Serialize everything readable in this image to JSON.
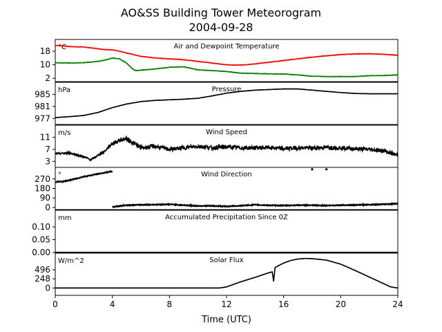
{
  "figure": {
    "title_line1": "AO&SS Building Tower Meteorogram",
    "title_line2": "2004-09-28",
    "xlabel": "Time (UTC)",
    "x_ticks": [
      "0",
      "4",
      "8",
      "12",
      "16",
      "20",
      "24"
    ]
  },
  "chart_data": [
    {
      "type": "line",
      "title": "Air and Dewpoint Temperature",
      "unit": "°C",
      "xlim": [
        0,
        24
      ],
      "ylim": [
        0,
        25
      ],
      "yticks": [
        2,
        10,
        18
      ],
      "series": [
        {
          "color": "#ff0000",
          "x": [
            0,
            0.5,
            1,
            1.5,
            2,
            2.5,
            3,
            3.5,
            4,
            4.5,
            5,
            5.5,
            6,
            6.5,
            7,
            8,
            9,
            10,
            11,
            12,
            12.5,
            13,
            14,
            15,
            16,
            17,
            18,
            19,
            20,
            21,
            22,
            23,
            24
          ],
          "y": [
            21.5,
            21.2,
            20.8,
            20.6,
            20.5,
            20,
            19.5,
            19,
            18.8,
            18,
            17,
            16,
            15,
            14.5,
            14,
            13.5,
            13,
            12,
            11,
            10,
            9.8,
            9.8,
            10.5,
            11.5,
            12.5,
            13.5,
            14.5,
            15.3,
            16,
            16.4,
            16.5,
            16.2,
            15.6
          ]
        },
        {
          "color": "#008000",
          "x": [
            0,
            1,
            2,
            3,
            3.5,
            4,
            4.5,
            5,
            5.3,
            5.6,
            6,
            7,
            8,
            9,
            10,
            11,
            12,
            13,
            14,
            15,
            16,
            17,
            18,
            19,
            20,
            21,
            22,
            23,
            24
          ],
          "y": [
            11.2,
            11,
            11.2,
            12,
            12.8,
            14,
            13.5,
            11,
            8.5,
            6.5,
            6.8,
            7.5,
            8.5,
            8.8,
            7,
            6.5,
            6,
            5,
            4.8,
            4.6,
            4.5,
            4,
            3.2,
            3,
            3,
            3,
            3.5,
            3.6,
            4
          ]
        }
      ]
    },
    {
      "type": "line",
      "title": "Pressure",
      "unit": "hPa",
      "xlim": [
        0,
        24
      ],
      "ylim": [
        975,
        989
      ],
      "yticks": [
        977,
        981,
        985
      ],
      "series": [
        {
          "color": "#000000",
          "x": [
            0,
            1,
            2,
            3,
            4,
            5,
            6,
            7,
            8,
            9,
            10,
            11,
            12,
            13,
            14,
            15,
            16,
            17,
            18,
            19,
            20,
            21,
            22,
            23,
            24
          ],
          "y": [
            977.3,
            977.6,
            978,
            979,
            980.6,
            981.8,
            982.6,
            983,
            983.2,
            983.4,
            983.7,
            984.5,
            985.4,
            986,
            986.4,
            986.6,
            986.8,
            986.8,
            986.4,
            986,
            985.6,
            985.3,
            985.2,
            985.2,
            985.2
          ]
        }
      ]
    },
    {
      "type": "line",
      "title": "Wind Speed",
      "unit": "m/s",
      "xlim": [
        0,
        24
      ],
      "ylim": [
        1,
        15
      ],
      "yticks": [
        3,
        7,
        11
      ],
      "series": [
        {
          "color": "#000000",
          "x": [
            0,
            1,
            2,
            2.5,
            3,
            3.5,
            4,
            4.5,
            5,
            5.5,
            6,
            7,
            8,
            9,
            10,
            11,
            12,
            13,
            14,
            15,
            16,
            17,
            18,
            19,
            20,
            21,
            22,
            23,
            24
          ],
          "y": [
            5.5,
            5.8,
            4.5,
            3.5,
            5,
            6.5,
            9,
            10,
            10.5,
            9,
            7.5,
            8,
            7,
            7.5,
            8,
            7.5,
            7.8,
            7.5,
            7.5,
            7.6,
            7.2,
            7.5,
            7.4,
            7.6,
            7.5,
            7.2,
            7,
            6.5,
            5
          ]
        }
      ]
    },
    {
      "type": "scatter",
      "title": "Wind Direction",
      "unit": "°",
      "xlim": [
        0,
        24
      ],
      "ylim": [
        -20,
        380
      ],
      "yticks": [
        0,
        90,
        180,
        270
      ],
      "series": [
        {
          "color": "#000000",
          "x": [
            0,
            0.5,
            1,
            1.5,
            2,
            2.5,
            3,
            3.5,
            4
          ],
          "y": [
            243,
            245,
            258,
            275,
            292,
            305,
            318,
            330,
            343
          ]
        },
        {
          "color": "#000000",
          "x": [
            4,
            5,
            6,
            7,
            8,
            9,
            10,
            11,
            12,
            13,
            14,
            15,
            16,
            17,
            18,
            19,
            20,
            21,
            22,
            23,
            24
          ],
          "y": [
            5,
            22,
            25,
            27,
            30,
            22,
            15,
            15,
            10,
            17,
            25,
            20,
            18,
            22,
            20,
            18,
            22,
            23,
            27,
            30,
            37
          ]
        },
        {
          "color": "#000000",
          "x": [
            18,
            19
          ],
          "y": [
            362,
            362
          ]
        }
      ]
    },
    {
      "type": "line",
      "title": "Accumulated Precipitation Since 0Z",
      "unit": "mm",
      "xlim": [
        0,
        24
      ],
      "ylim": [
        0,
        0.165
      ],
      "yticks": [
        0.0,
        0.05,
        0.1
      ],
      "ytick_labels": [
        "0.00",
        "0.05",
        "0.10"
      ],
      "series": [
        {
          "color": "#000000",
          "x": [
            0,
            24
          ],
          "y": [
            0,
            0
          ]
        }
      ]
    },
    {
      "type": "line",
      "title": "Solar Flux",
      "unit": "W/m^2",
      "xlim": [
        0,
        24
      ],
      "ylim": [
        -200,
        950
      ],
      "yticks": [
        0,
        248,
        496
      ],
      "series": [
        {
          "color": "#000000",
          "x": [
            0,
            11.5,
            12,
            12.5,
            13,
            14,
            15,
            15.2,
            15.3,
            15.4,
            15.6,
            16,
            16.5,
            17,
            17.5,
            18,
            19,
            20,
            21,
            22,
            23,
            23.5,
            24
          ],
          "y": [
            0,
            0,
            30,
            100,
            170,
            290,
            420,
            440,
            180,
            560,
            600,
            680,
            750,
            790,
            805,
            800,
            760,
            650,
            480,
            300,
            120,
            30,
            0
          ]
        }
      ]
    }
  ]
}
